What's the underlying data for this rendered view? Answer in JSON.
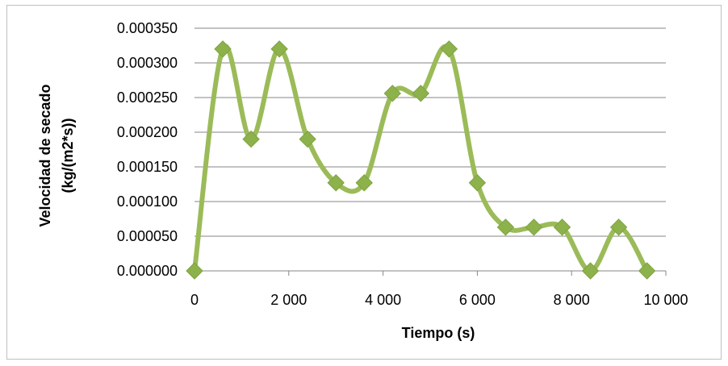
{
  "chart_data": {
    "type": "line",
    "title": "",
    "xlabel": "Tiempo (s)",
    "ylabel_lines": [
      "Velocidad de secado",
      "(kg/(m2*s))"
    ],
    "xlim": [
      0,
      10000
    ],
    "ylim": [
      0,
      0.00035
    ],
    "x_ticks": [
      0,
      2000,
      4000,
      6000,
      8000,
      10000
    ],
    "x_tick_labels": [
      "0",
      "2 000",
      "4 000",
      "6 000",
      "8 000",
      "10 000"
    ],
    "y_ticks": [
      0,
      5e-05,
      0.0001,
      0.00015,
      0.0002,
      0.00025,
      0.0003,
      0.00035
    ],
    "y_tick_labels": [
      "0.000000",
      "0.000050",
      "0.000100",
      "0.000150",
      "0.000200",
      "0.000250",
      "0.000300",
      "0.000350"
    ],
    "grid": true,
    "smooth": true,
    "series": [
      {
        "color": "#9bbb59",
        "marker_color": "#8db24c",
        "x": [
          0,
          600,
          1200,
          1800,
          2400,
          3000,
          3600,
          4200,
          4800,
          5400,
          6000,
          6600,
          7200,
          7800,
          8400,
          9000,
          9600
        ],
        "y": [
          0,
          0.00032,
          0.00019,
          0.00032,
          0.00019,
          0.000127,
          0.000127,
          0.000256,
          0.000256,
          0.00032,
          0.000127,
          6.3e-05,
          6.3e-05,
          6.3e-05,
          0,
          6.3e-05,
          0
        ]
      }
    ]
  }
}
